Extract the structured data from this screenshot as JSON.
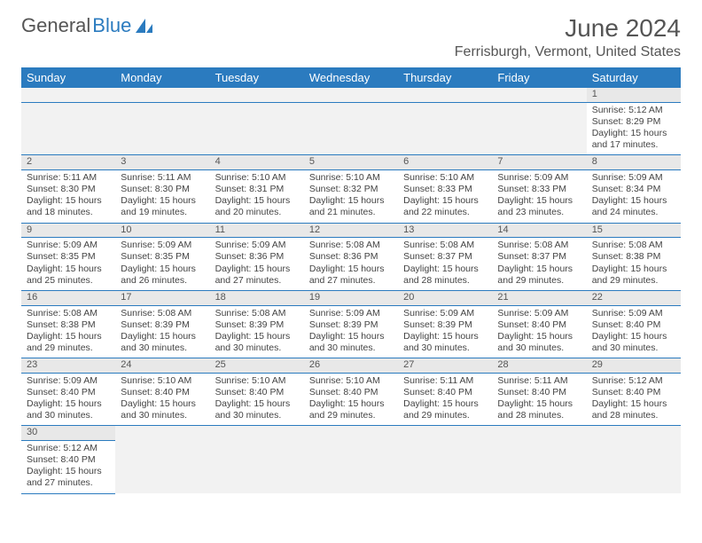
{
  "logo": {
    "text_a": "General",
    "text_b": "Blue"
  },
  "title": "June 2024",
  "location": "Ferrisburgh, Vermont, United States",
  "colors": {
    "header_bg": "#2b7bbf",
    "header_fg": "#ffffff",
    "daynum_bg": "#e8e8e8",
    "border": "#2b7bbf"
  },
  "days_of_week": [
    "Sunday",
    "Monday",
    "Tuesday",
    "Wednesday",
    "Thursday",
    "Friday",
    "Saturday"
  ],
  "weeks": [
    [
      null,
      null,
      null,
      null,
      null,
      null,
      {
        "n": "1",
        "sr": "Sunrise: 5:12 AM",
        "ss": "Sunset: 8:29 PM",
        "d1": "Daylight: 15 hours",
        "d2": "and 17 minutes."
      }
    ],
    [
      {
        "n": "2",
        "sr": "Sunrise: 5:11 AM",
        "ss": "Sunset: 8:30 PM",
        "d1": "Daylight: 15 hours",
        "d2": "and 18 minutes."
      },
      {
        "n": "3",
        "sr": "Sunrise: 5:11 AM",
        "ss": "Sunset: 8:30 PM",
        "d1": "Daylight: 15 hours",
        "d2": "and 19 minutes."
      },
      {
        "n": "4",
        "sr": "Sunrise: 5:10 AM",
        "ss": "Sunset: 8:31 PM",
        "d1": "Daylight: 15 hours",
        "d2": "and 20 minutes."
      },
      {
        "n": "5",
        "sr": "Sunrise: 5:10 AM",
        "ss": "Sunset: 8:32 PM",
        "d1": "Daylight: 15 hours",
        "d2": "and 21 minutes."
      },
      {
        "n": "6",
        "sr": "Sunrise: 5:10 AM",
        "ss": "Sunset: 8:33 PM",
        "d1": "Daylight: 15 hours",
        "d2": "and 22 minutes."
      },
      {
        "n": "7",
        "sr": "Sunrise: 5:09 AM",
        "ss": "Sunset: 8:33 PM",
        "d1": "Daylight: 15 hours",
        "d2": "and 23 minutes."
      },
      {
        "n": "8",
        "sr": "Sunrise: 5:09 AM",
        "ss": "Sunset: 8:34 PM",
        "d1": "Daylight: 15 hours",
        "d2": "and 24 minutes."
      }
    ],
    [
      {
        "n": "9",
        "sr": "Sunrise: 5:09 AM",
        "ss": "Sunset: 8:35 PM",
        "d1": "Daylight: 15 hours",
        "d2": "and 25 minutes."
      },
      {
        "n": "10",
        "sr": "Sunrise: 5:09 AM",
        "ss": "Sunset: 8:35 PM",
        "d1": "Daylight: 15 hours",
        "d2": "and 26 minutes."
      },
      {
        "n": "11",
        "sr": "Sunrise: 5:09 AM",
        "ss": "Sunset: 8:36 PM",
        "d1": "Daylight: 15 hours",
        "d2": "and 27 minutes."
      },
      {
        "n": "12",
        "sr": "Sunrise: 5:08 AM",
        "ss": "Sunset: 8:36 PM",
        "d1": "Daylight: 15 hours",
        "d2": "and 27 minutes."
      },
      {
        "n": "13",
        "sr": "Sunrise: 5:08 AM",
        "ss": "Sunset: 8:37 PM",
        "d1": "Daylight: 15 hours",
        "d2": "and 28 minutes."
      },
      {
        "n": "14",
        "sr": "Sunrise: 5:08 AM",
        "ss": "Sunset: 8:37 PM",
        "d1": "Daylight: 15 hours",
        "d2": "and 29 minutes."
      },
      {
        "n": "15",
        "sr": "Sunrise: 5:08 AM",
        "ss": "Sunset: 8:38 PM",
        "d1": "Daylight: 15 hours",
        "d2": "and 29 minutes."
      }
    ],
    [
      {
        "n": "16",
        "sr": "Sunrise: 5:08 AM",
        "ss": "Sunset: 8:38 PM",
        "d1": "Daylight: 15 hours",
        "d2": "and 29 minutes."
      },
      {
        "n": "17",
        "sr": "Sunrise: 5:08 AM",
        "ss": "Sunset: 8:39 PM",
        "d1": "Daylight: 15 hours",
        "d2": "and 30 minutes."
      },
      {
        "n": "18",
        "sr": "Sunrise: 5:08 AM",
        "ss": "Sunset: 8:39 PM",
        "d1": "Daylight: 15 hours",
        "d2": "and 30 minutes."
      },
      {
        "n": "19",
        "sr": "Sunrise: 5:09 AM",
        "ss": "Sunset: 8:39 PM",
        "d1": "Daylight: 15 hours",
        "d2": "and 30 minutes."
      },
      {
        "n": "20",
        "sr": "Sunrise: 5:09 AM",
        "ss": "Sunset: 8:39 PM",
        "d1": "Daylight: 15 hours",
        "d2": "and 30 minutes."
      },
      {
        "n": "21",
        "sr": "Sunrise: 5:09 AM",
        "ss": "Sunset: 8:40 PM",
        "d1": "Daylight: 15 hours",
        "d2": "and 30 minutes."
      },
      {
        "n": "22",
        "sr": "Sunrise: 5:09 AM",
        "ss": "Sunset: 8:40 PM",
        "d1": "Daylight: 15 hours",
        "d2": "and 30 minutes."
      }
    ],
    [
      {
        "n": "23",
        "sr": "Sunrise: 5:09 AM",
        "ss": "Sunset: 8:40 PM",
        "d1": "Daylight: 15 hours",
        "d2": "and 30 minutes."
      },
      {
        "n": "24",
        "sr": "Sunrise: 5:10 AM",
        "ss": "Sunset: 8:40 PM",
        "d1": "Daylight: 15 hours",
        "d2": "and 30 minutes."
      },
      {
        "n": "25",
        "sr": "Sunrise: 5:10 AM",
        "ss": "Sunset: 8:40 PM",
        "d1": "Daylight: 15 hours",
        "d2": "and 30 minutes."
      },
      {
        "n": "26",
        "sr": "Sunrise: 5:10 AM",
        "ss": "Sunset: 8:40 PM",
        "d1": "Daylight: 15 hours",
        "d2": "and 29 minutes."
      },
      {
        "n": "27",
        "sr": "Sunrise: 5:11 AM",
        "ss": "Sunset: 8:40 PM",
        "d1": "Daylight: 15 hours",
        "d2": "and 29 minutes."
      },
      {
        "n": "28",
        "sr": "Sunrise: 5:11 AM",
        "ss": "Sunset: 8:40 PM",
        "d1": "Daylight: 15 hours",
        "d2": "and 28 minutes."
      },
      {
        "n": "29",
        "sr": "Sunrise: 5:12 AM",
        "ss": "Sunset: 8:40 PM",
        "d1": "Daylight: 15 hours",
        "d2": "and 28 minutes."
      }
    ],
    [
      {
        "n": "30",
        "sr": "Sunrise: 5:12 AM",
        "ss": "Sunset: 8:40 PM",
        "d1": "Daylight: 15 hours",
        "d2": "and 27 minutes."
      },
      null,
      null,
      null,
      null,
      null,
      null
    ]
  ]
}
